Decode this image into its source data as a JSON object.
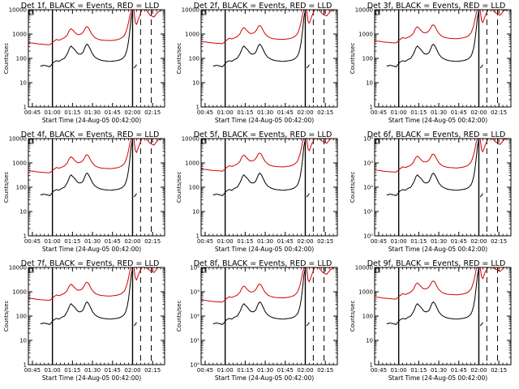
{
  "chart_data": {
    "type": "line",
    "colors": {
      "events": "#000000",
      "lld": "#d40000"
    },
    "x_ticks": [
      "00:45",
      "01:00",
      "01:15",
      "01:30",
      "01:45",
      "02:00",
      "02:15"
    ],
    "x_tick_minutes": [
      45,
      60,
      75,
      90,
      105,
      120,
      135
    ],
    "x_range_minutes": [
      42,
      144
    ],
    "y_scale": "log",
    "ylim": [
      1,
      10000
    ],
    "ylabel": "Counts/sec",
    "xlabel": "Start Time (24-Aug-05 00:42:00)",
    "vertical_lines": {
      "solid_minutes": [
        60,
        120
      ],
      "dashed_minutes": [
        126,
        134
      ]
    },
    "panels": [
      {
        "title": "Det 1f, BLACK = Events, RED = LLD",
        "y_tick_labels": [
          "1",
          "10",
          "100",
          "1000",
          "10000"
        ],
        "lld_scale": 2.6
      },
      {
        "title": "Det 2f, BLACK = Events, RED = LLD",
        "y_tick_labels": [
          "1",
          "10",
          "100",
          "1000",
          "10000"
        ],
        "lld_scale": 2.9
      },
      {
        "title": "Det 3f, BLACK = Events, RED = LLD",
        "y_tick_labels": [
          "1",
          "10",
          "100",
          "1000",
          "10000"
        ],
        "lld_scale": 3.1
      },
      {
        "title": "Det 4f, BLACK = Events, RED = LLD",
        "y_tick_labels": [
          "1",
          "10",
          "100",
          "1000",
          "10000"
        ],
        "lld_scale": 2.8
      },
      {
        "title": "Det 5f, BLACK = Events, RED = LLD",
        "y_tick_labels": [
          "1",
          "10",
          "100",
          "1000",
          "10000"
        ],
        "lld_scale": 3.3
      },
      {
        "title": "Det 6f, BLACK = Events, RED = LLD",
        "y_tick_labels": [
          "10⁰",
          "10¹",
          "10²",
          "10³",
          "10⁴"
        ],
        "lld_scale": 3.0
      },
      {
        "title": "Det 7f, BLACK = Events, RED = LLD",
        "y_tick_labels": [
          "1",
          "10",
          "100",
          "1000",
          "10000"
        ],
        "lld_scale": 3.2
      },
      {
        "title": "Det 8f, BLACK = Events, RED = LLD",
        "y_tick_labels": [
          "10⁰",
          "10¹",
          "10²",
          "10³",
          "10⁴"
        ],
        "lld_scale": 2.7
      },
      {
        "title": "Det 9f, BLACK = Events, RED = LLD",
        "y_tick_labels": [
          "1",
          "10",
          "100",
          "1000",
          "10000"
        ],
        "lld_scale": 3.6
      }
    ],
    "events_profile": [
      {
        "t": 51,
        "v": 50
      },
      {
        "t": 52,
        "v": 48
      },
      {
        "t": 53,
        "v": 52
      },
      {
        "t": 55,
        "v": 50
      },
      {
        "t": 58,
        "v": 45
      },
      {
        "t": 61,
        "v": 70
      },
      {
        "t": 63,
        "v": 80
      },
      {
        "t": 65,
        "v": 75
      },
      {
        "t": 67,
        "v": 90
      },
      {
        "t": 69,
        "v": 100
      },
      {
        "t": 71,
        "v": 150
      },
      {
        "t": 72,
        "v": 200
      },
      {
        "t": 73,
        "v": 280
      },
      {
        "t": 74,
        "v": 320
      },
      {
        "t": 75,
        "v": 280
      },
      {
        "t": 76,
        "v": 250
      },
      {
        "t": 77,
        "v": 220
      },
      {
        "t": 78,
        "v": 180
      },
      {
        "t": 79,
        "v": 160
      },
      {
        "t": 80,
        "v": 150
      },
      {
        "t": 81,
        "v": 150
      },
      {
        "t": 82,
        "v": 160
      },
      {
        "t": 83,
        "v": 180
      },
      {
        "t": 84,
        "v": 250
      },
      {
        "t": 85,
        "v": 340
      },
      {
        "t": 86,
        "v": 380
      },
      {
        "t": 87,
        "v": 330
      },
      {
        "t": 88,
        "v": 260
      },
      {
        "t": 89,
        "v": 200
      },
      {
        "t": 90,
        "v": 150
      },
      {
        "t": 92,
        "v": 110
      },
      {
        "t": 94,
        "v": 95
      },
      {
        "t": 96,
        "v": 85
      },
      {
        "t": 98,
        "v": 80
      },
      {
        "t": 100,
        "v": 78
      },
      {
        "t": 102,
        "v": 76
      },
      {
        "t": 104,
        "v": 75
      },
      {
        "t": 106,
        "v": 78
      },
      {
        "t": 108,
        "v": 80
      },
      {
        "t": 110,
        "v": 85
      },
      {
        "t": 112,
        "v": 95
      },
      {
        "t": 114,
        "v": 120
      },
      {
        "t": 115,
        "v": 160
      },
      {
        "t": 116,
        "v": 250
      },
      {
        "t": 117,
        "v": 500
      },
      {
        "t": 118,
        "v": 1500
      },
      {
        "t": 119,
        "v": 5000
      },
      {
        "t": 120,
        "v": 9000
      }
    ],
    "events_tail": [
      {
        "t": 121,
        "v": 40
      },
      {
        "t": 122,
        "v": 45
      },
      {
        "t": 123,
        "v": 55
      }
    ],
    "lld_profile": [
      {
        "t": 42,
        "v": 450
      },
      {
        "t": 44,
        "v": 430
      },
      {
        "t": 46,
        "v": 420
      },
      {
        "t": 48,
        "v": 400
      },
      {
        "t": 50,
        "v": 390
      },
      {
        "t": 52,
        "v": 380
      },
      {
        "t": 55,
        "v": 370
      },
      {
        "t": 58,
        "v": 360
      },
      {
        "t": 61,
        "v": 500
      },
      {
        "t": 63,
        "v": 600
      },
      {
        "t": 65,
        "v": 560
      },
      {
        "t": 67,
        "v": 620
      },
      {
        "t": 69,
        "v": 700
      },
      {
        "t": 71,
        "v": 900
      },
      {
        "t": 72,
        "v": 1200
      },
      {
        "t": 73,
        "v": 1500
      },
      {
        "t": 74,
        "v": 1650
      },
      {
        "t": 75,
        "v": 1500
      },
      {
        "t": 76,
        "v": 1300
      },
      {
        "t": 77,
        "v": 1150
      },
      {
        "t": 78,
        "v": 1000
      },
      {
        "t": 79,
        "v": 950
      },
      {
        "t": 80,
        "v": 950
      },
      {
        "t": 81,
        "v": 980
      },
      {
        "t": 82,
        "v": 1050
      },
      {
        "t": 83,
        "v": 1200
      },
      {
        "t": 84,
        "v": 1500
      },
      {
        "t": 85,
        "v": 1900
      },
      {
        "t": 86,
        "v": 2000
      },
      {
        "t": 87,
        "v": 1800
      },
      {
        "t": 88,
        "v": 1400
      },
      {
        "t": 89,
        "v": 1100
      },
      {
        "t": 90,
        "v": 900
      },
      {
        "t": 92,
        "v": 700
      },
      {
        "t": 94,
        "v": 620
      },
      {
        "t": 96,
        "v": 580
      },
      {
        "t": 98,
        "v": 560
      },
      {
        "t": 100,
        "v": 550
      },
      {
        "t": 102,
        "v": 540
      },
      {
        "t": 104,
        "v": 540
      },
      {
        "t": 106,
        "v": 560
      },
      {
        "t": 108,
        "v": 580
      },
      {
        "t": 110,
        "v": 620
      },
      {
        "t": 112,
        "v": 700
      },
      {
        "t": 114,
        "v": 900
      },
      {
        "t": 115,
        "v": 1200
      },
      {
        "t": 116,
        "v": 1800
      },
      {
        "t": 117,
        "v": 3000
      },
      {
        "t": 118,
        "v": 6000
      },
      {
        "t": 119,
        "v": 9000
      },
      {
        "t": 120,
        "v": 10000
      },
      {
        "t": 121,
        "v": 10000
      },
      {
        "t": 122,
        "v": 3000
      },
      {
        "t": 123,
        "v": 2500
      },
      {
        "t": 125,
        "v": 5000
      },
      {
        "t": 127,
        "v": 10000
      },
      {
        "t": 130,
        "v": 10000
      },
      {
        "t": 133,
        "v": 6000
      },
      {
        "t": 136,
        "v": 5000
      },
      {
        "t": 139,
        "v": 8000
      },
      {
        "t": 142,
        "v": 10000
      }
    ]
  }
}
